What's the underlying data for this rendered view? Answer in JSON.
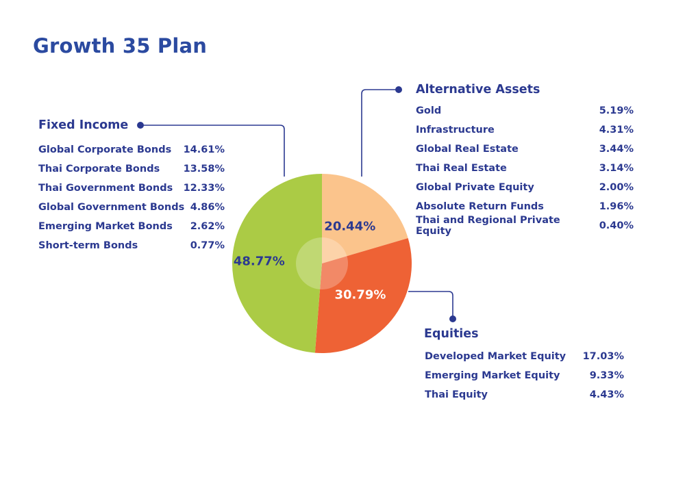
{
  "title": "Growth 35 Plan",
  "colors": {
    "fixed_income": "#abcb45",
    "alternative_assets": "#fbc48c",
    "equities": "#ee6235",
    "text": "#2b3990",
    "connector": "#2b3990"
  },
  "chart_data": {
    "type": "pie",
    "title": "Growth 35 Plan",
    "slices": [
      {
        "name": "Alternative Assets",
        "value": 20.44,
        "label": "20.44%"
      },
      {
        "name": "Equities",
        "value": 30.79,
        "label": "30.79%"
      },
      {
        "name": "Fixed Income",
        "value": 48.77,
        "label": "48.77%"
      }
    ]
  },
  "sections": {
    "fixed_income": {
      "title": "Fixed Income",
      "items": [
        {
          "label": "Global Corporate Bonds",
          "value": "14.61%"
        },
        {
          "label": "Thai Corporate Bonds",
          "value": "13.58%"
        },
        {
          "label": "Thai Government Bonds",
          "value": "12.33%"
        },
        {
          "label": "Global Government Bonds",
          "value": "4.86%"
        },
        {
          "label": "Emerging Market Bonds",
          "value": "2.62%"
        },
        {
          "label": "Short-term Bonds",
          "value": "0.77%"
        }
      ]
    },
    "alternative_assets": {
      "title": "Alternative Assets",
      "items": [
        {
          "label": "Gold",
          "value": "5.19%"
        },
        {
          "label": "Infrastructure",
          "value": "4.31%"
        },
        {
          "label": "Global Real Estate",
          "value": "3.44%"
        },
        {
          "label": "Thai Real Estate",
          "value": "3.14%"
        },
        {
          "label": "Global Private Equity",
          "value": "2.00%"
        },
        {
          "label": "Absolute Return Funds",
          "value": "1.96%"
        },
        {
          "label": "Thai and Regional Private Equity",
          "value": "0.40%"
        }
      ]
    },
    "equities": {
      "title": "Equities",
      "items": [
        {
          "label": "Developed Market Equity",
          "value": "17.03%"
        },
        {
          "label": "Emerging Market Equity",
          "value": "9.33%"
        },
        {
          "label": "Thai Equity",
          "value": "4.43%"
        }
      ]
    }
  }
}
